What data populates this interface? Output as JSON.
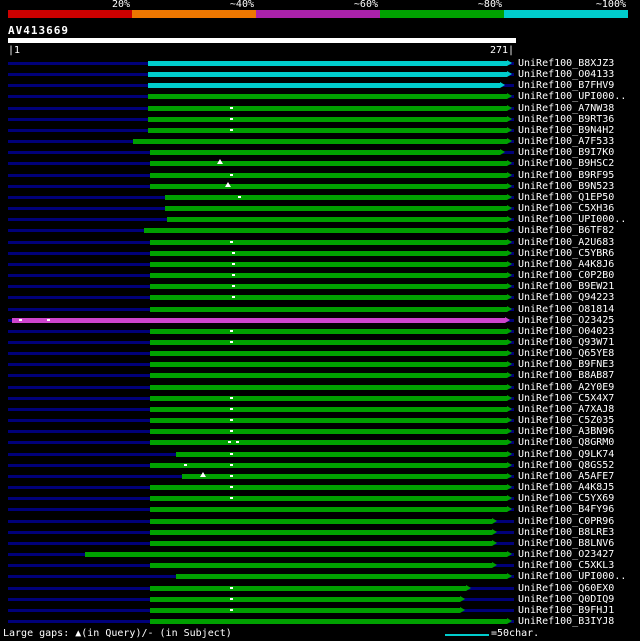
{
  "colors": {
    "background": "#000000",
    "text": "#ffffff",
    "backbone": "#00007a",
    "identity": {
      "~100%": "#00cccc",
      "~80%": "#00a000",
      "~60%": "#cc44cc"
    },
    "legend_line": "#00cccc"
  },
  "scalebar": {
    "labels": [
      "20%",
      "~40%",
      "~60%",
      "~80%",
      "~100%"
    ],
    "segment_colors": [
      "#cc0000",
      "#ee7700",
      "#aa22aa",
      "#00a000",
      "#00cccc"
    ]
  },
  "query": {
    "name": "AV413669",
    "start_label": "|1",
    "end_label": "271|",
    "length": 271
  },
  "footer": {
    "gaps_legend": "Large gaps: ▲(in Query)/- (in Subject)",
    "scale_legend": "=50char."
  },
  "chart_data": {
    "type": "bar",
    "orientation": "horizontal-span",
    "title": "AV413669 similarity search graphical overview",
    "xlim": [
      1,
      271
    ],
    "identity_buckets": [
      "20%",
      "~40%",
      "~60%",
      "~80%",
      "~100%"
    ],
    "hits": [
      {
        "label": "UniRef100_B8XJZ3",
        "pct": "~100%",
        "span": [
          75,
          270
        ],
        "gaps": []
      },
      {
        "label": "UniRef100_O04133",
        "pct": "~100%",
        "span": [
          75,
          270
        ],
        "gaps": []
      },
      {
        "label": "UniRef100_B7FHV9",
        "pct": "~100%",
        "span": [
          75,
          266
        ],
        "gaps": []
      },
      {
        "label": "UniRef100_UPI000..",
        "pct": "~80%",
        "span": [
          75,
          270
        ],
        "gaps": []
      },
      {
        "label": "UniRef100_A7NW38",
        "pct": "~80%",
        "span": [
          75,
          270
        ],
        "gaps": [
          [
            119,
            "dash"
          ]
        ]
      },
      {
        "label": "UniRef100_B9RT36",
        "pct": "~80%",
        "span": [
          75,
          270
        ],
        "gaps": [
          [
            119,
            "dash"
          ]
        ]
      },
      {
        "label": "UniRef100_B9N4H2",
        "pct": "~80%",
        "span": [
          75,
          270
        ],
        "gaps": [
          [
            119,
            "dash"
          ]
        ]
      },
      {
        "label": "UniRef100_A7F533",
        "pct": "~80%",
        "span": [
          67,
          270
        ],
        "gaps": []
      },
      {
        "label": "UniRef100_B9I7K0",
        "pct": "~80%",
        "span": [
          76,
          266
        ],
        "gaps": []
      },
      {
        "label": "UniRef100_B9HSC2",
        "pct": "~80%",
        "span": [
          76,
          270
        ],
        "gaps": [
          [
            112,
            "tri"
          ]
        ]
      },
      {
        "label": "UniRef100_B9RF95",
        "pct": "~80%",
        "span": [
          76,
          270
        ],
        "gaps": [
          [
            119,
            "dash"
          ]
        ]
      },
      {
        "label": "UniRef100_B9N523",
        "pct": "~80%",
        "span": [
          76,
          270
        ],
        "gaps": [
          [
            116,
            "tri"
          ]
        ]
      },
      {
        "label": "UniRef100_Q1EP50",
        "pct": "~80%",
        "span": [
          84,
          270
        ],
        "gaps": [
          [
            123,
            "dash"
          ]
        ]
      },
      {
        "label": "UniRef100_C5XH36",
        "pct": "~80%",
        "span": [
          84,
          270
        ],
        "gaps": []
      },
      {
        "label": "UniRef100_UPI000..",
        "pct": "~80%",
        "span": [
          85,
          270
        ],
        "gaps": []
      },
      {
        "label": "UniRef100_B6TF82",
        "pct": "~80%",
        "span": [
          73,
          270
        ],
        "gaps": []
      },
      {
        "label": "UniRef100_A2U683",
        "pct": "~80%",
        "span": [
          76,
          270
        ],
        "gaps": [
          [
            119,
            "dash"
          ]
        ]
      },
      {
        "label": "UniRef100_C5YBR6",
        "pct": "~80%",
        "span": [
          76,
          270
        ],
        "gaps": [
          [
            120,
            "dash"
          ]
        ]
      },
      {
        "label": "UniRef100_A4K8J6",
        "pct": "~80%",
        "span": [
          76,
          270
        ],
        "gaps": [
          [
            120,
            "dash"
          ]
        ]
      },
      {
        "label": "UniRef100_C0P2B0",
        "pct": "~80%",
        "span": [
          76,
          270
        ],
        "gaps": [
          [
            120,
            "dash"
          ]
        ]
      },
      {
        "label": "UniRef100_B9EW21",
        "pct": "~80%",
        "span": [
          76,
          270
        ],
        "gaps": [
          [
            120,
            "dash"
          ]
        ]
      },
      {
        "label": "UniRef100_Q94223",
        "pct": "~80%",
        "span": [
          76,
          270
        ],
        "gaps": [
          [
            120,
            "dash"
          ]
        ]
      },
      {
        "label": "UniRef100_O81814",
        "pct": "~80%",
        "span": [
          76,
          270
        ],
        "gaps": []
      },
      {
        "label": "UniRef100_O23425",
        "pct": "~60%",
        "span": [
          2,
          269
        ],
        "gaps": [
          [
            6,
            "dash"
          ],
          [
            21,
            "dash"
          ]
        ]
      },
      {
        "label": "UniRef100_O04023",
        "pct": "~80%",
        "span": [
          76,
          270
        ],
        "gaps": [
          [
            119,
            "dash"
          ]
        ]
      },
      {
        "label": "UniRef100_Q93W71",
        "pct": "~80%",
        "span": [
          76,
          270
        ],
        "gaps": [
          [
            119,
            "dash"
          ]
        ]
      },
      {
        "label": "UniRef100_Q65YE8",
        "pct": "~80%",
        "span": [
          76,
          270
        ],
        "gaps": []
      },
      {
        "label": "UniRef100_B9FNE3",
        "pct": "~80%",
        "span": [
          76,
          270
        ],
        "gaps": []
      },
      {
        "label": "UniRef100_B8AB87",
        "pct": "~80%",
        "span": [
          76,
          270
        ],
        "gaps": []
      },
      {
        "label": "UniRef100_A2Y0E9",
        "pct": "~80%",
        "span": [
          76,
          270
        ],
        "gaps": []
      },
      {
        "label": "UniRef100_C5X4X7",
        "pct": "~80%",
        "span": [
          76,
          270
        ],
        "gaps": [
          [
            119,
            "dash"
          ]
        ]
      },
      {
        "label": "UniRef100_A7XAJ8",
        "pct": "~80%",
        "span": [
          76,
          270
        ],
        "gaps": [
          [
            119,
            "dash"
          ]
        ]
      },
      {
        "label": "UniRef100_C5Z035",
        "pct": "~80%",
        "span": [
          76,
          270
        ],
        "gaps": [
          [
            119,
            "dash"
          ]
        ]
      },
      {
        "label": "UniRef100_A3BN96",
        "pct": "~80%",
        "span": [
          76,
          270
        ],
        "gaps": [
          [
            119,
            "dash"
          ]
        ]
      },
      {
        "label": "UniRef100_Q8GRM0",
        "pct": "~80%",
        "span": [
          76,
          270
        ],
        "gaps": [
          [
            118,
            "dash"
          ],
          [
            122,
            "dash"
          ]
        ]
      },
      {
        "label": "UniRef100_Q9LK74",
        "pct": "~80%",
        "span": [
          90,
          270
        ],
        "gaps": [
          [
            119,
            "dash"
          ]
        ]
      },
      {
        "label": "UniRef100_Q8GS52",
        "pct": "~80%",
        "span": [
          76,
          270
        ],
        "gaps": [
          [
            94,
            "dash"
          ],
          [
            119,
            "dash"
          ]
        ]
      },
      {
        "label": "UniRef100_A5AFE7",
        "pct": "~80%",
        "span": [
          93,
          270
        ],
        "gaps": [
          [
            103,
            "tri"
          ],
          [
            119,
            "dash"
          ]
        ]
      },
      {
        "label": "UniRef100_A4K8J5",
        "pct": "~80%",
        "span": [
          76,
          270
        ],
        "gaps": [
          [
            119,
            "dash"
          ]
        ]
      },
      {
        "label": "UniRef100_C5YX69",
        "pct": "~80%",
        "span": [
          76,
          270
        ],
        "gaps": [
          [
            119,
            "dash"
          ]
        ]
      },
      {
        "label": "UniRef100_B4FY96",
        "pct": "~80%",
        "span": [
          76,
          270
        ],
        "gaps": []
      },
      {
        "label": "UniRef100_C0PR96",
        "pct": "~80%",
        "span": [
          76,
          262
        ],
        "gaps": []
      },
      {
        "label": "UniRef100_B8LRE3",
        "pct": "~80%",
        "span": [
          76,
          262
        ],
        "gaps": []
      },
      {
        "label": "UniRef100_B8LNV6",
        "pct": "~80%",
        "span": [
          76,
          262
        ],
        "gaps": []
      },
      {
        "label": "UniRef100_O23427",
        "pct": "~80%",
        "span": [
          41,
          270
        ],
        "gaps": []
      },
      {
        "label": "UniRef100_C5XKL3",
        "pct": "~80%",
        "span": [
          76,
          262
        ],
        "gaps": []
      },
      {
        "label": "UniRef100_UPI000..",
        "pct": "~80%",
        "span": [
          90,
          270
        ],
        "gaps": []
      },
      {
        "label": "UniRef100_Q60EX0",
        "pct": "~80%",
        "span": [
          76,
          248
        ],
        "gaps": [
          [
            119,
            "dash"
          ]
        ]
      },
      {
        "label": "UniRef100_Q0DIQ9",
        "pct": "~80%",
        "span": [
          76,
          245
        ],
        "gaps": [
          [
            119,
            "dash"
          ]
        ]
      },
      {
        "label": "UniRef100_B9FHJ1",
        "pct": "~80%",
        "span": [
          76,
          245
        ],
        "gaps": [
          [
            119,
            "dash"
          ]
        ]
      },
      {
        "label": "UniRef100_B3IYJ8",
        "pct": "~80%",
        "span": [
          76,
          270
        ],
        "gaps": []
      }
    ]
  }
}
